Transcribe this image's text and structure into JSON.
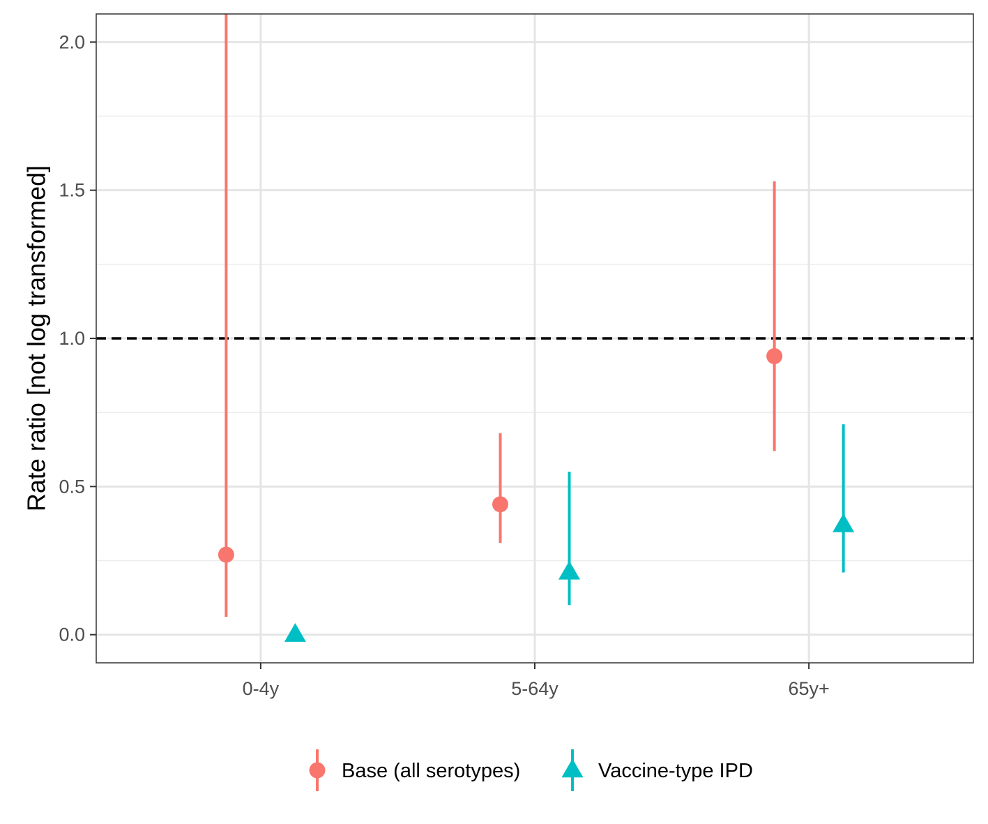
{
  "chart_data": {
    "type": "scatter",
    "title": "",
    "xlabel": "",
    "ylabel": "Rate ratio [not log transformed]",
    "categories": [
      "0-4y",
      "5-64y",
      "65y+"
    ],
    "ylim": [
      -0.095,
      2.095
    ],
    "yticks": [
      0.0,
      0.5,
      1.0,
      1.5,
      2.0
    ],
    "ytick_labels": [
      "0.0",
      "0.5",
      "1.0",
      "1.5",
      "2.0"
    ],
    "reference_line": {
      "y": 1.0,
      "style": "dashed"
    },
    "grid": true,
    "legend_position": "bottom",
    "series": [
      {
        "name": "Base (all serotypes)",
        "marker": "circle",
        "color": "#F8766D",
        "points": [
          {
            "category": "0-4y",
            "value": 0.27,
            "lower": 0.06,
            "upper": 2.095
          },
          {
            "category": "5-64y",
            "value": 0.44,
            "lower": 0.31,
            "upper": 0.68
          },
          {
            "category": "65y+",
            "value": 0.94,
            "lower": 0.62,
            "upper": 1.53
          }
        ]
      },
      {
        "name": "Vaccine-type IPD",
        "marker": "triangle",
        "color": "#00BFC4",
        "points": [
          {
            "category": "0-4y",
            "value": 0.0,
            "lower": null,
            "upper": null
          },
          {
            "category": "5-64y",
            "value": 0.21,
            "lower": 0.1,
            "upper": 0.55
          },
          {
            "category": "65y+",
            "value": 0.37,
            "lower": 0.21,
            "upper": 0.71
          }
        ]
      }
    ]
  }
}
